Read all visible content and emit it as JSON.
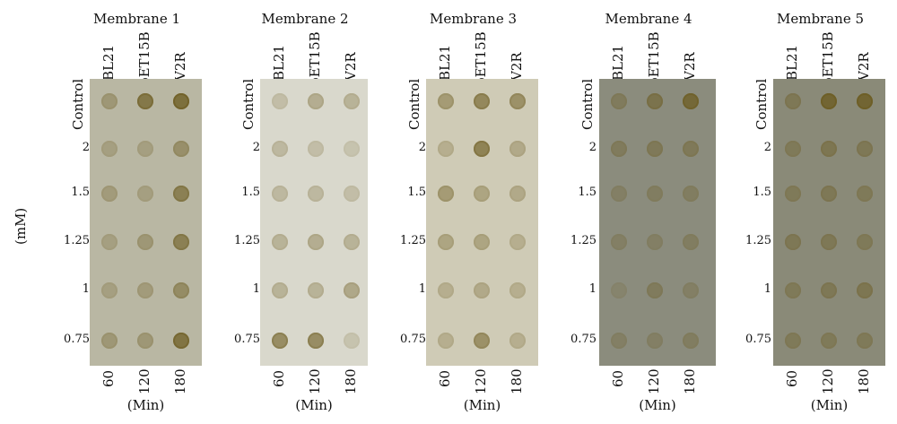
{
  "y_axis_label": "(mM)",
  "x_axis_label": "(Min)",
  "column_labels": [
    "BL21",
    "pET15B",
    "V2R"
  ],
  "row_labels": [
    "Control",
    "2",
    "1.5",
    "1.25",
    "1",
    "0.75"
  ],
  "time_labels": [
    "60",
    "120",
    "180"
  ],
  "panels": [
    {
      "title": "Membrane 1",
      "bg": "#b9b7a3"
    },
    {
      "title": "Membrane 2",
      "bg": "#d9d8cc"
    },
    {
      "title": "Membrane 3",
      "bg": "#cfcbb6"
    },
    {
      "title": "Membrane 4",
      "bg": "#8b8c7d"
    },
    {
      "title": "Membrane 5",
      "bg": "#8a8a78"
    }
  ],
  "colors": {
    "dot_light": "#a59d78",
    "dot_dark": "#6b5a1e"
  }
}
